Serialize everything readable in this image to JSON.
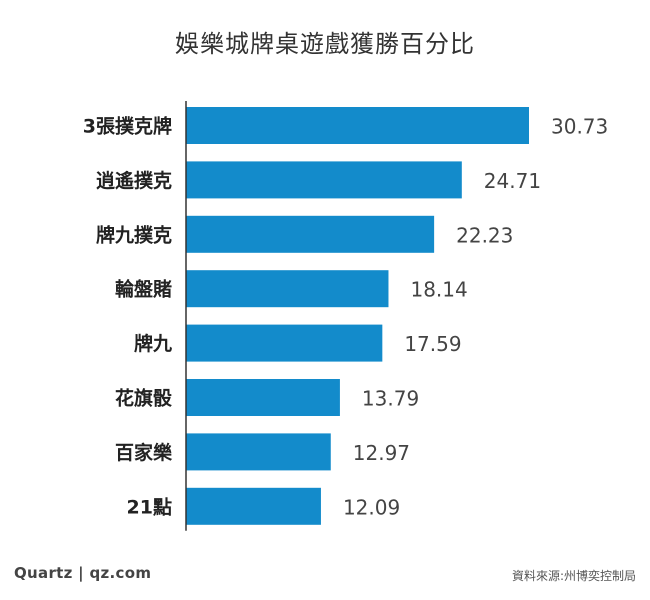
{
  "chart_data": {
    "type": "bar",
    "orientation": "horizontal",
    "title": "娛樂城牌桌遊戲獲勝百分比",
    "categories": [
      "3張撲克牌",
      "逍遙撲克",
      "牌九撲克",
      "輪盤賭",
      "牌九",
      "花旗骰",
      "百家樂",
      "21點"
    ],
    "values": [
      30.73,
      24.71,
      22.23,
      18.14,
      17.59,
      13.79,
      12.97,
      12.09
    ],
    "value_labels": [
      "30.73",
      "24.71",
      "22.23",
      "18.14",
      "17.59",
      "13.79",
      "12.97",
      "12.09"
    ],
    "xlim": [
      0,
      30.73
    ],
    "bar_color": "#138bcb",
    "grid": false,
    "legend": "none"
  },
  "footer": {
    "brand": "Quartz | qz.com",
    "source": "資料來源:州博奕控制局"
  }
}
